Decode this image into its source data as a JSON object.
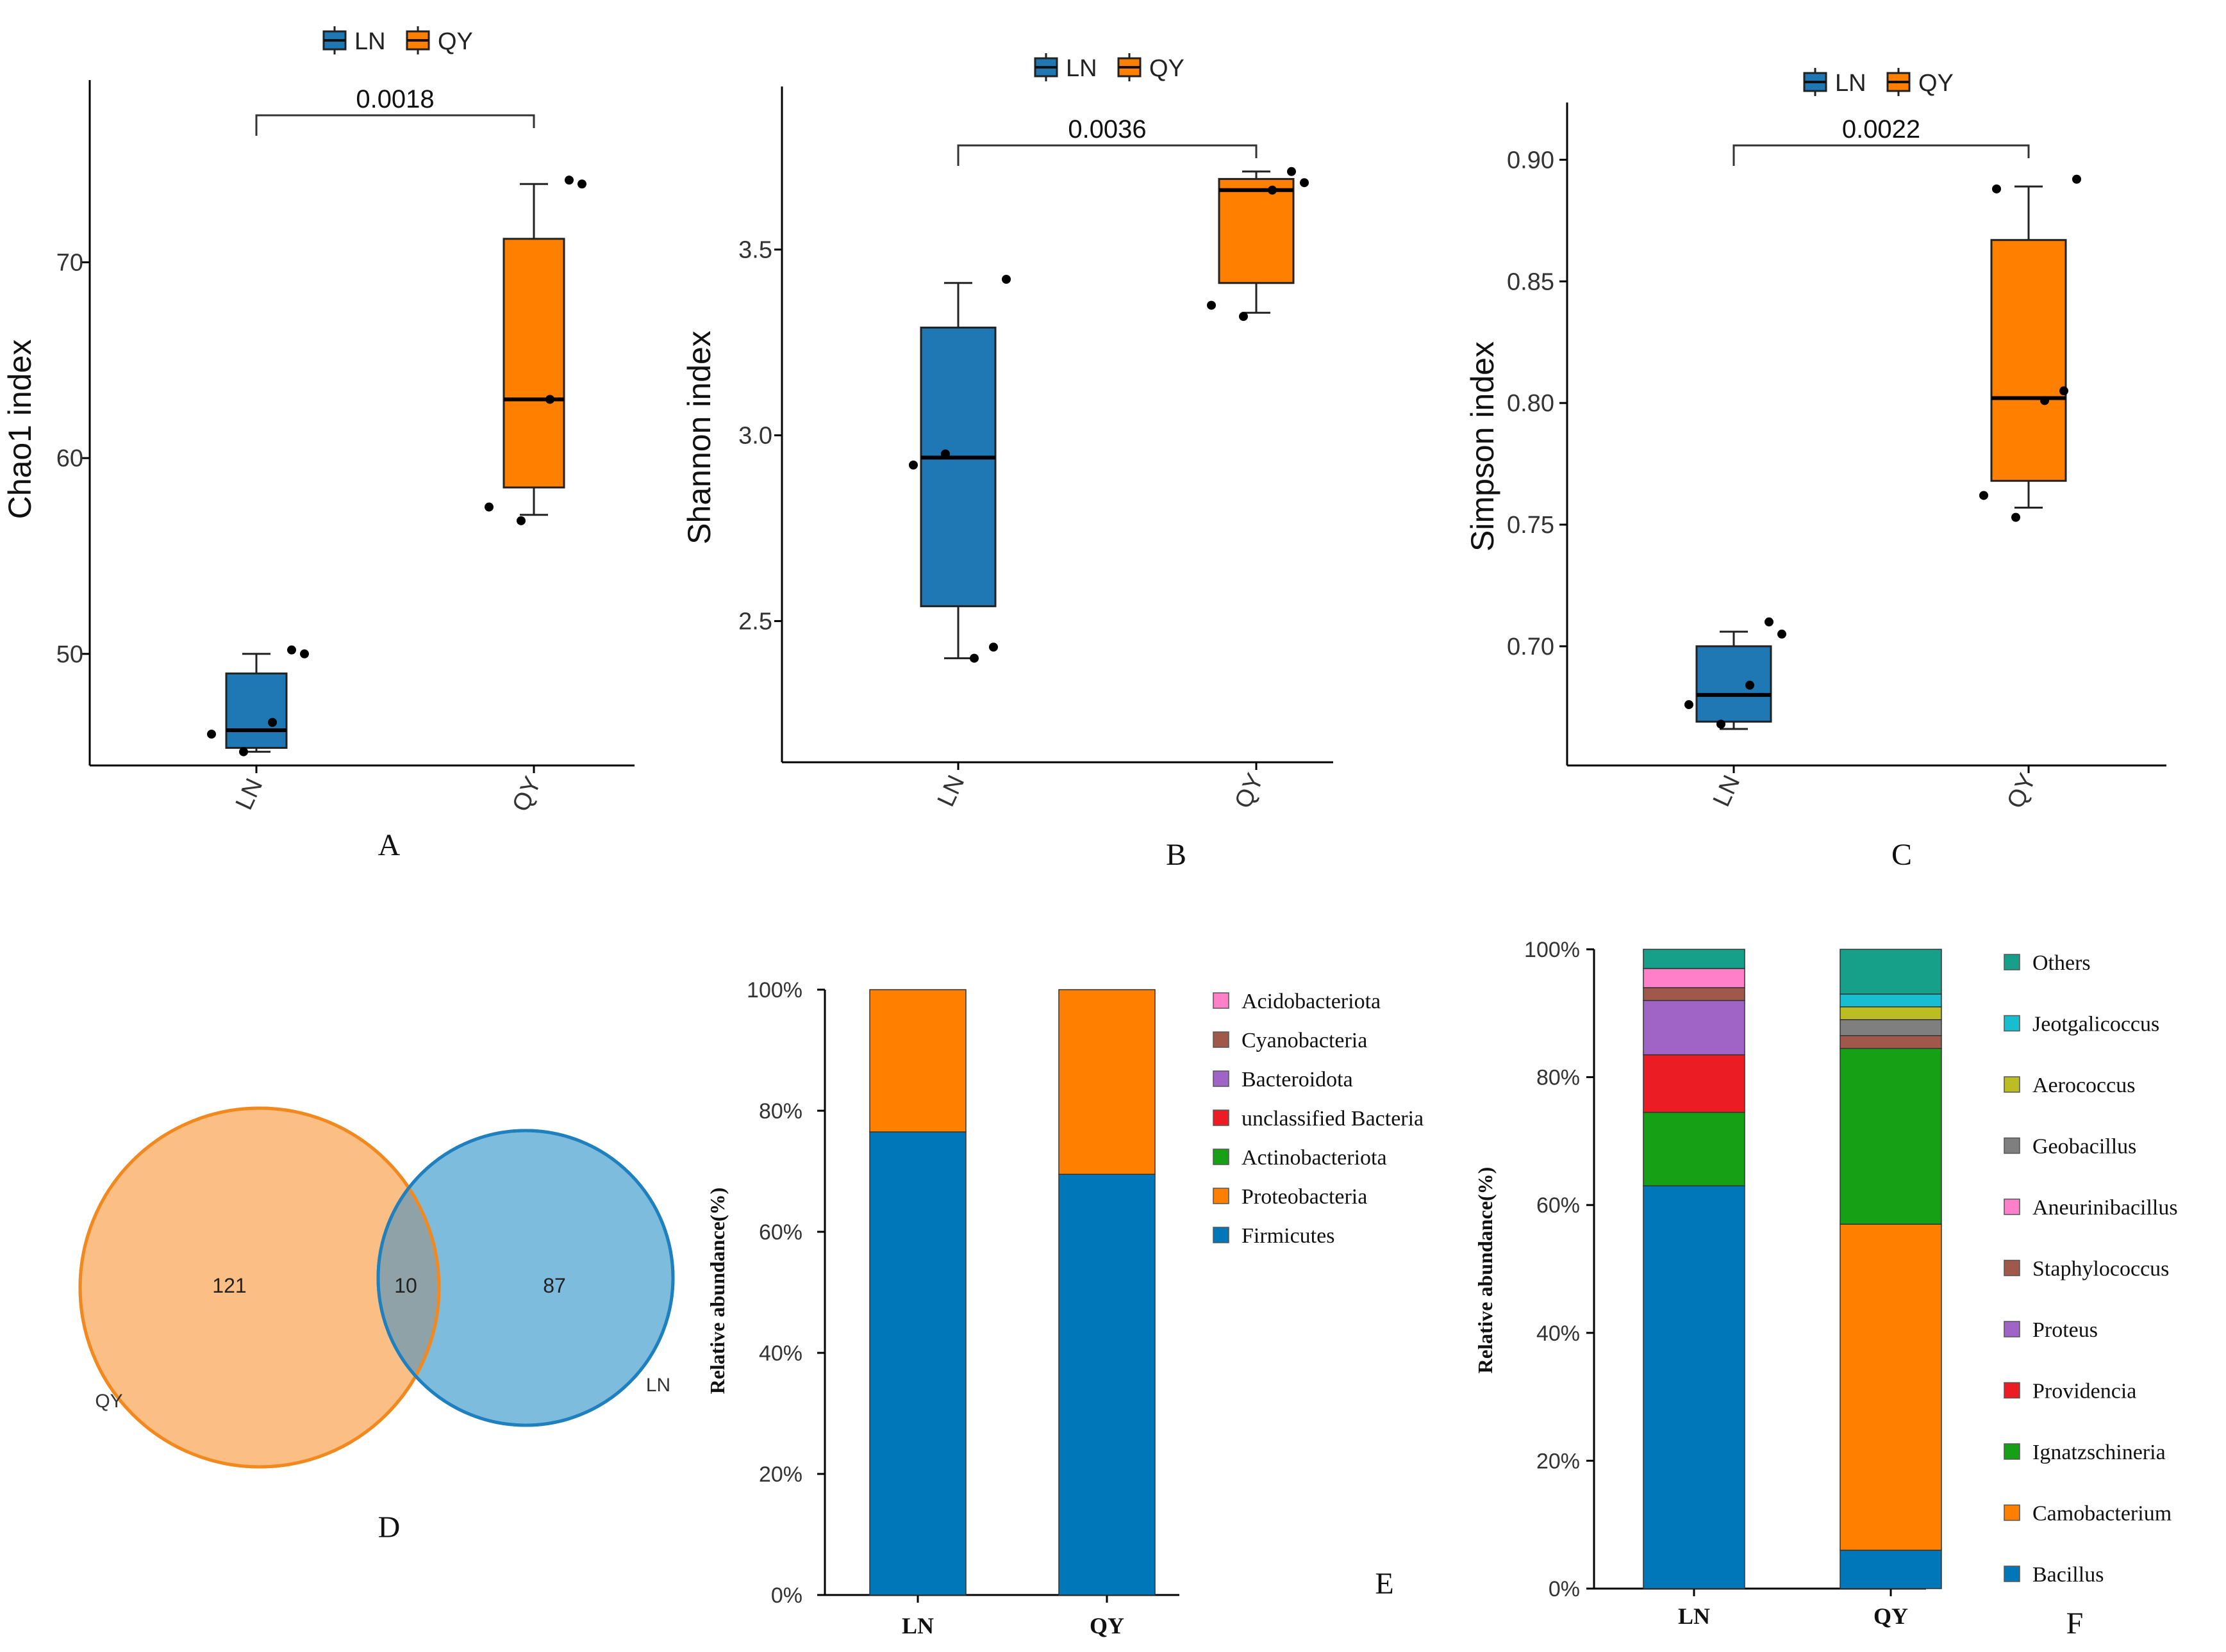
{
  "colors": {
    "LN": "#1f78b4",
    "QY": "#ff7f00",
    "axis": "#000000",
    "venn_QY_fill": "#fbbf85",
    "venn_QY_stroke": "#f2891e",
    "venn_LN_fill": "#7dbcdc",
    "venn_LN_stroke": "#1f80bf",
    "venn_overlap_fill": "#8ea2a8"
  },
  "chart_data": [
    {
      "id": "A",
      "type": "box",
      "panel_label": "A",
      "ylabel": "Chao1 index",
      "categories": [
        "LN",
        "QY"
      ],
      "legend": [
        "LN",
        "QY"
      ],
      "ylim": [
        44.3,
        78
      ],
      "yticks": [
        50,
        60,
        70
      ],
      "pvalue": "0.0018",
      "boxes": [
        {
          "name": "LN",
          "whisker_low": 45.0,
          "q1": 45.2,
          "median": 46.1,
          "q3": 49.0,
          "whisker_high": 50.0,
          "points": [
            45.9,
            45.0,
            46.5,
            50.2,
            50.0
          ]
        },
        {
          "name": "QY",
          "whisker_low": 57.1,
          "q1": 58.5,
          "median": 63.0,
          "q3": 71.2,
          "whisker_high": 74.0,
          "points": [
            57.5,
            56.8,
            63.0,
            74.2,
            74.0
          ]
        }
      ]
    },
    {
      "id": "B",
      "type": "box",
      "panel_label": "B",
      "ylabel": "Shannon index",
      "categories": [
        "LN",
        "QY"
      ],
      "legend": [
        "LN",
        "QY"
      ],
      "ylim": [
        2.12,
        3.87
      ],
      "yticks": [
        2.5,
        3.0,
        3.5
      ],
      "ytick_labels": [
        "2.5",
        "3.0",
        "3.5"
      ],
      "pvalue": "0.0036",
      "boxes": [
        {
          "name": "LN",
          "whisker_low": 2.4,
          "q1": 2.54,
          "median": 2.94,
          "q3": 3.29,
          "whisker_high": 3.41,
          "points": [
            2.92,
            2.95,
            2.4,
            2.43,
            3.42
          ]
        },
        {
          "name": "QY",
          "whisker_low": 3.33,
          "q1": 3.41,
          "median": 3.66,
          "q3": 3.69,
          "whisker_high": 3.71,
          "points": [
            3.35,
            3.32,
            3.66,
            3.71,
            3.68
          ]
        }
      ]
    },
    {
      "id": "C",
      "type": "box",
      "panel_label": "C",
      "ylabel": "Simpson index",
      "categories": [
        "LN",
        "QY"
      ],
      "legend": [
        "LN",
        "QY"
      ],
      "ylim": [
        0.651,
        0.913
      ],
      "yticks": [
        0.7,
        0.75,
        0.8,
        0.85,
        0.9
      ],
      "ytick_labels": [
        "0.70",
        "0.75",
        "0.80",
        "0.85",
        "0.90"
      ],
      "pvalue": "0.0022",
      "boxes": [
        {
          "name": "LN",
          "whisker_low": 0.666,
          "q1": 0.669,
          "median": 0.68,
          "q3": 0.7,
          "whisker_high": 0.706,
          "points": [
            0.676,
            0.668,
            0.684,
            0.71,
            0.705
          ]
        },
        {
          "name": "QY",
          "whisker_low": 0.757,
          "q1": 0.768,
          "median": 0.802,
          "q3": 0.867,
          "whisker_high": 0.889,
          "points": [
            0.762,
            0.753,
            0.801,
            0.805,
            0.892,
            0.888
          ]
        }
      ]
    },
    {
      "id": "E",
      "type": "stacked_bar",
      "panel_label": "E",
      "ylabel": "Relative abundance(%)",
      "categories": [
        "LN",
        "QY"
      ],
      "yticks": [
        "0%",
        "20%",
        "40%",
        "60%",
        "80%",
        "100%"
      ],
      "legend_order": [
        "Acidobacteriota",
        "Cyanobacteria",
        "Bacteroidota",
        "unclassified_Bacteria",
        "Actinobacteriota",
        "Proteobacteria",
        "Firmicutes"
      ],
      "legend_labels": [
        "Acidobacteriota",
        "Cyanobacteria",
        "Bacteroidota",
        "unclassified Bacteria",
        "Actinobacteriota",
        "Proteobacteria",
        "Firmicutes"
      ],
      "legend_colors": [
        "#ff7fc8",
        "#a0584a",
        "#9f64c6",
        "#ec1c24",
        "#16a016",
        "#ff7f00",
        "#0077b8"
      ],
      "series": [
        {
          "name": "Firmicutes",
          "color": "#0077b8",
          "values": [
            76.5,
            69.5
          ]
        },
        {
          "name": "Proteobacteria",
          "color": "#ff7f00",
          "values": [
            23.5,
            30.5
          ]
        },
        {
          "name": "Actinobacteriota",
          "color": "#16a016",
          "values": [
            0,
            0
          ]
        },
        {
          "name": "unclassified_Bacteria",
          "color": "#ec1c24",
          "values": [
            0,
            0
          ]
        },
        {
          "name": "Bacteroidota",
          "color": "#9f64c6",
          "values": [
            0,
            0
          ]
        },
        {
          "name": "Cyanobacteria",
          "color": "#a0584a",
          "values": [
            0,
            0
          ]
        },
        {
          "name": "Acidobacteriota",
          "color": "#ff7fc8",
          "values": [
            0,
            0
          ]
        }
      ]
    },
    {
      "id": "F",
      "type": "stacked_bar",
      "panel_label": "F",
      "ylabel": "Relative abundance(%)",
      "categories": [
        "LN",
        "QY"
      ],
      "yticks": [
        "0%",
        "20%",
        "40%",
        "60%",
        "80%",
        "100%"
      ],
      "legend_order": [
        "Others",
        "Jeotgalicoccus",
        "Aerococcus",
        "Geobacillus",
        "Aneurinibacillus",
        "Staphylococcus",
        "Proteus",
        "Providencia",
        "Ignatzschineria",
        "Camobacterium",
        "Bacillus"
      ],
      "legend_colors": [
        "#16a08a",
        "#17becf",
        "#bcbd22",
        "#7f7f7f",
        "#ff7fc8",
        "#a0584a",
        "#9f64c6",
        "#ec1c24",
        "#16a016",
        "#ff7f00",
        "#0077b8"
      ],
      "series": [
        {
          "name": "Bacillus",
          "color": "#0077b8",
          "values": [
            63.0,
            6.0
          ]
        },
        {
          "name": "Camobacterium",
          "color": "#ff7f00",
          "values": [
            0,
            51.0
          ]
        },
        {
          "name": "Ignatzschineria",
          "color": "#16a016",
          "values": [
            11.5,
            27.5
          ]
        },
        {
          "name": "Providencia",
          "color": "#ec1c24",
          "values": [
            9.0,
            0
          ]
        },
        {
          "name": "Proteus",
          "color": "#9f64c6",
          "values": [
            8.5,
            0
          ]
        },
        {
          "name": "Staphylococcus",
          "color": "#a0584a",
          "values": [
            2.0,
            2.0
          ]
        },
        {
          "name": "Aneurinibacillus",
          "color": "#ff7fc8",
          "values": [
            3.0,
            0
          ]
        },
        {
          "name": "Geobacillus",
          "color": "#7f7f7f",
          "values": [
            0,
            2.5
          ]
        },
        {
          "name": "Aerococcus",
          "color": "#bcbd22",
          "values": [
            0,
            2.0
          ]
        },
        {
          "name": "Jeotgalicoccus",
          "color": "#17becf",
          "values": [
            0,
            2.0
          ]
        },
        {
          "name": "Others",
          "color": "#16a08a",
          "values": [
            3.0,
            7.0
          ]
        }
      ]
    }
  ],
  "venn": {
    "panel_label": "D",
    "sets": [
      {
        "name": "QY",
        "count": "121"
      },
      {
        "name": "LN",
        "count": "87"
      }
    ],
    "overlap": "10"
  }
}
